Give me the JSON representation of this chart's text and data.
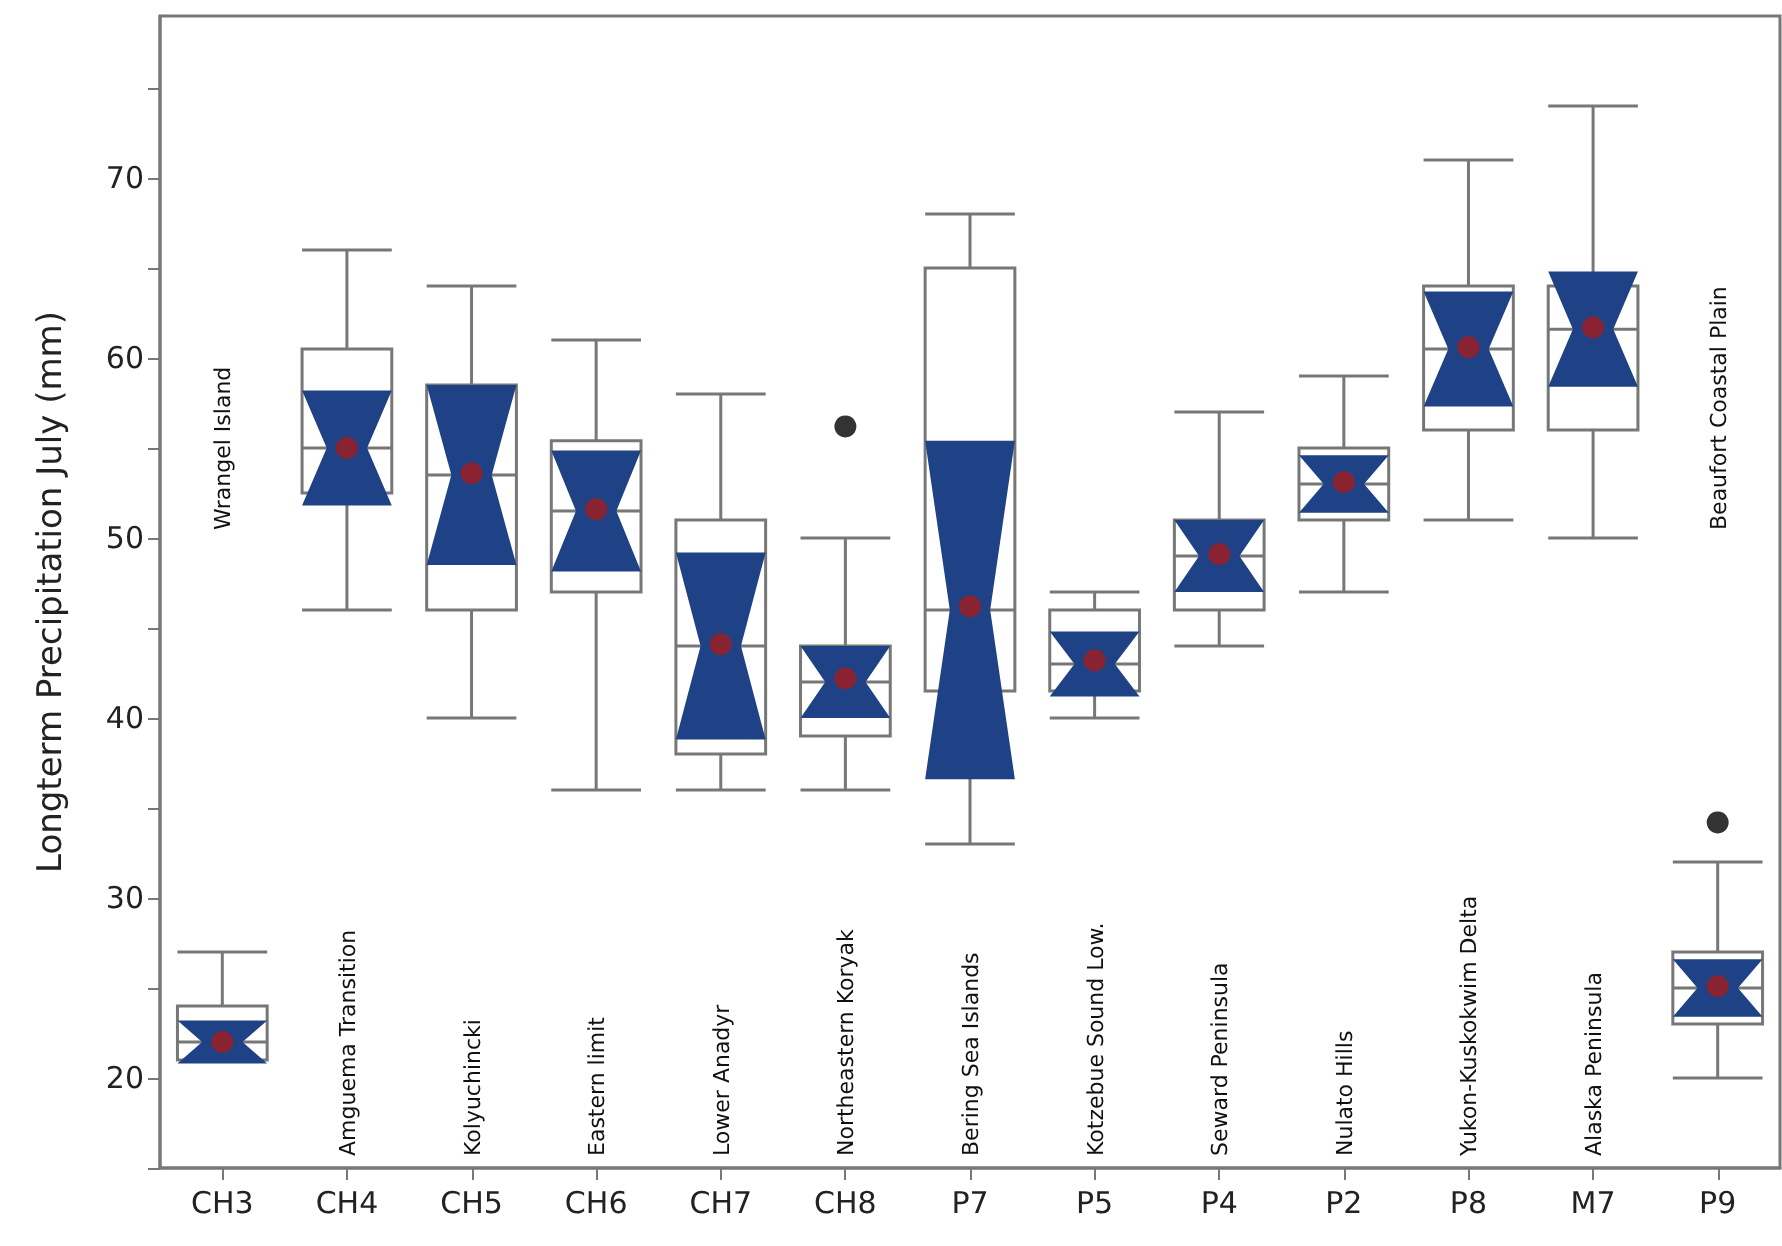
{
  "chart_data": {
    "type": "box",
    "ylabel": "Longterm Precipitation July (mm)",
    "categories": [
      "CH3",
      "CH4",
      "CH5",
      "CH6",
      "CH7",
      "CH8",
      "P7",
      "P5",
      "P4",
      "P2",
      "P8",
      "M7",
      "P9"
    ],
    "boxes": [
      {
        "low": 21,
        "q1": 21,
        "median": 22,
        "q3": 24,
        "high": 27,
        "mean": 22
      },
      {
        "low": 46,
        "q1": 52.5,
        "median": 55,
        "q3": 60.5,
        "high": 66,
        "mean": 55
      },
      {
        "low": 40,
        "q1": 46,
        "median": 53.5,
        "q3": 58.5,
        "high": 64,
        "mean": 53.6
      },
      {
        "low": 36,
        "q1": 47,
        "median": 51.5,
        "q3": 55.4,
        "high": 61,
        "mean": 51.6
      },
      {
        "low": 36,
        "q1": 38,
        "median": 44,
        "q3": 51,
        "high": 58,
        "mean": 44.1
      },
      {
        "low": 36,
        "q1": 39,
        "median": 42,
        "q3": 44,
        "high": 50,
        "mean": 42.2,
        "outliers": [
          56.2
        ]
      },
      {
        "low": 33,
        "q1": 41.5,
        "median": 46,
        "q3": 65,
        "high": 68,
        "mean": 46.2
      },
      {
        "low": 40,
        "q1": 41.5,
        "median": 43,
        "q3": 46,
        "high": 47,
        "mean": 43.2
      },
      {
        "low": 44,
        "q1": 46,
        "median": 49,
        "q3": 51,
        "high": 57,
        "mean": 49.1
      },
      {
        "low": 47,
        "q1": 51,
        "median": 53,
        "q3": 55,
        "high": 59,
        "mean": 53.1
      },
      {
        "low": 51,
        "q1": 56,
        "median": 60.5,
        "q3": 64,
        "high": 71,
        "mean": 60.6
      },
      {
        "low": 50,
        "q1": 56,
        "median": 61.6,
        "q3": 64,
        "high": 74,
        "mean": 61.7
      },
      {
        "low": 20,
        "q1": 23,
        "median": 25,
        "q3": 27,
        "high": 32,
        "mean": 25.1,
        "outliers": [
          34.2
        ]
      }
    ],
    "ylim": [
      15,
      79
    ],
    "yticks": [
      {
        "value": 15,
        "label": null
      },
      20,
      {
        "value": 25,
        "label": null
      },
      30,
      {
        "value": 35,
        "label": null
      },
      40,
      {
        "value": 45,
        "label": null
      },
      50,
      {
        "value": 55,
        "label": null
      },
      60,
      {
        "value": 65,
        "label": null
      },
      70,
      {
        "value": 75,
        "label": null
      }
    ],
    "annotations": [
      "Wrangel Island",
      "Amguema Transition",
      "Kolyuchincki",
      "Eastern limit",
      "Lower Anadyr",
      "Northeastern Koryak",
      "Bering Sea Islands",
      "Kotzebue Sound Low.",
      "Seward Peninsula",
      "Nulato Hills",
      "Yukon-Kuskokwim Delta",
      "Alaska Peninsula",
      "Beaufort Coastal Plain"
    ]
  }
}
